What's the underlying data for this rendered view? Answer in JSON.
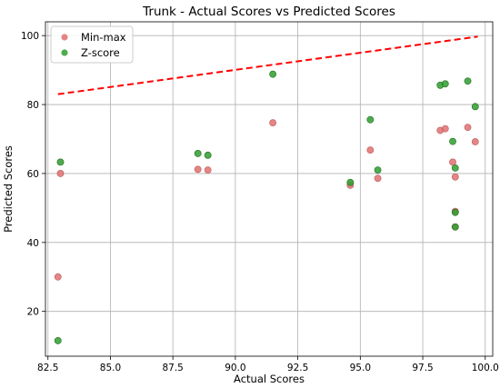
{
  "chart_data": {
    "type": "scatter",
    "title": "Trunk - Actual Scores vs Predicted Scores",
    "xlabel": "Actual Scores",
    "ylabel": "Predicted Scores",
    "xlim": [
      82.4,
      100.3
    ],
    "ylim": [
      7,
      104
    ],
    "xticks": [
      82.5,
      85.0,
      87.5,
      90.0,
      92.5,
      95.0,
      97.5,
      100.0
    ],
    "xtick_labels": [
      "82.5",
      "85.0",
      "87.5",
      "90.0",
      "92.5",
      "95.0",
      "97.5",
      "100.0"
    ],
    "yticks": [
      20,
      40,
      60,
      80,
      100
    ],
    "ytick_labels": [
      "20",
      "40",
      "60",
      "80",
      "100"
    ],
    "grid": true,
    "legend": "top-left",
    "reference_line": {
      "x": [
        82.9,
        99.7
      ],
      "y": [
        83,
        99.7
      ],
      "color": "#ff0000",
      "style": "dashed"
    },
    "series": [
      {
        "name": "Min-max",
        "color": "#e07070",
        "points": [
          [
            82.9,
            30
          ],
          [
            83.0,
            60
          ],
          [
            88.5,
            61.2
          ],
          [
            88.9,
            61
          ],
          [
            91.5,
            74.7
          ],
          [
            94.6,
            56.6
          ],
          [
            95.4,
            66.8
          ],
          [
            95.7,
            58.6
          ],
          [
            98.2,
            72.5
          ],
          [
            98.4,
            73
          ],
          [
            98.7,
            63.3
          ],
          [
            98.8,
            59
          ],
          [
            98.8,
            49
          ],
          [
            98.8,
            44.5
          ],
          [
            99.3,
            73.4
          ],
          [
            99.6,
            69.2
          ]
        ]
      },
      {
        "name": "Z-score",
        "color": "#2e9e2e",
        "points": [
          [
            82.9,
            11.5
          ],
          [
            83.0,
            63.3
          ],
          [
            88.5,
            65.8
          ],
          [
            88.9,
            65.3
          ],
          [
            91.5,
            88.8
          ],
          [
            94.6,
            57.4
          ],
          [
            95.4,
            75.6
          ],
          [
            95.7,
            61
          ],
          [
            98.2,
            85.6
          ],
          [
            98.4,
            86
          ],
          [
            98.7,
            69.3
          ],
          [
            98.8,
            61.6
          ],
          [
            98.8,
            48.7
          ],
          [
            98.8,
            44.5
          ],
          [
            99.3,
            86.8
          ],
          [
            99.6,
            79.4
          ]
        ]
      }
    ]
  }
}
